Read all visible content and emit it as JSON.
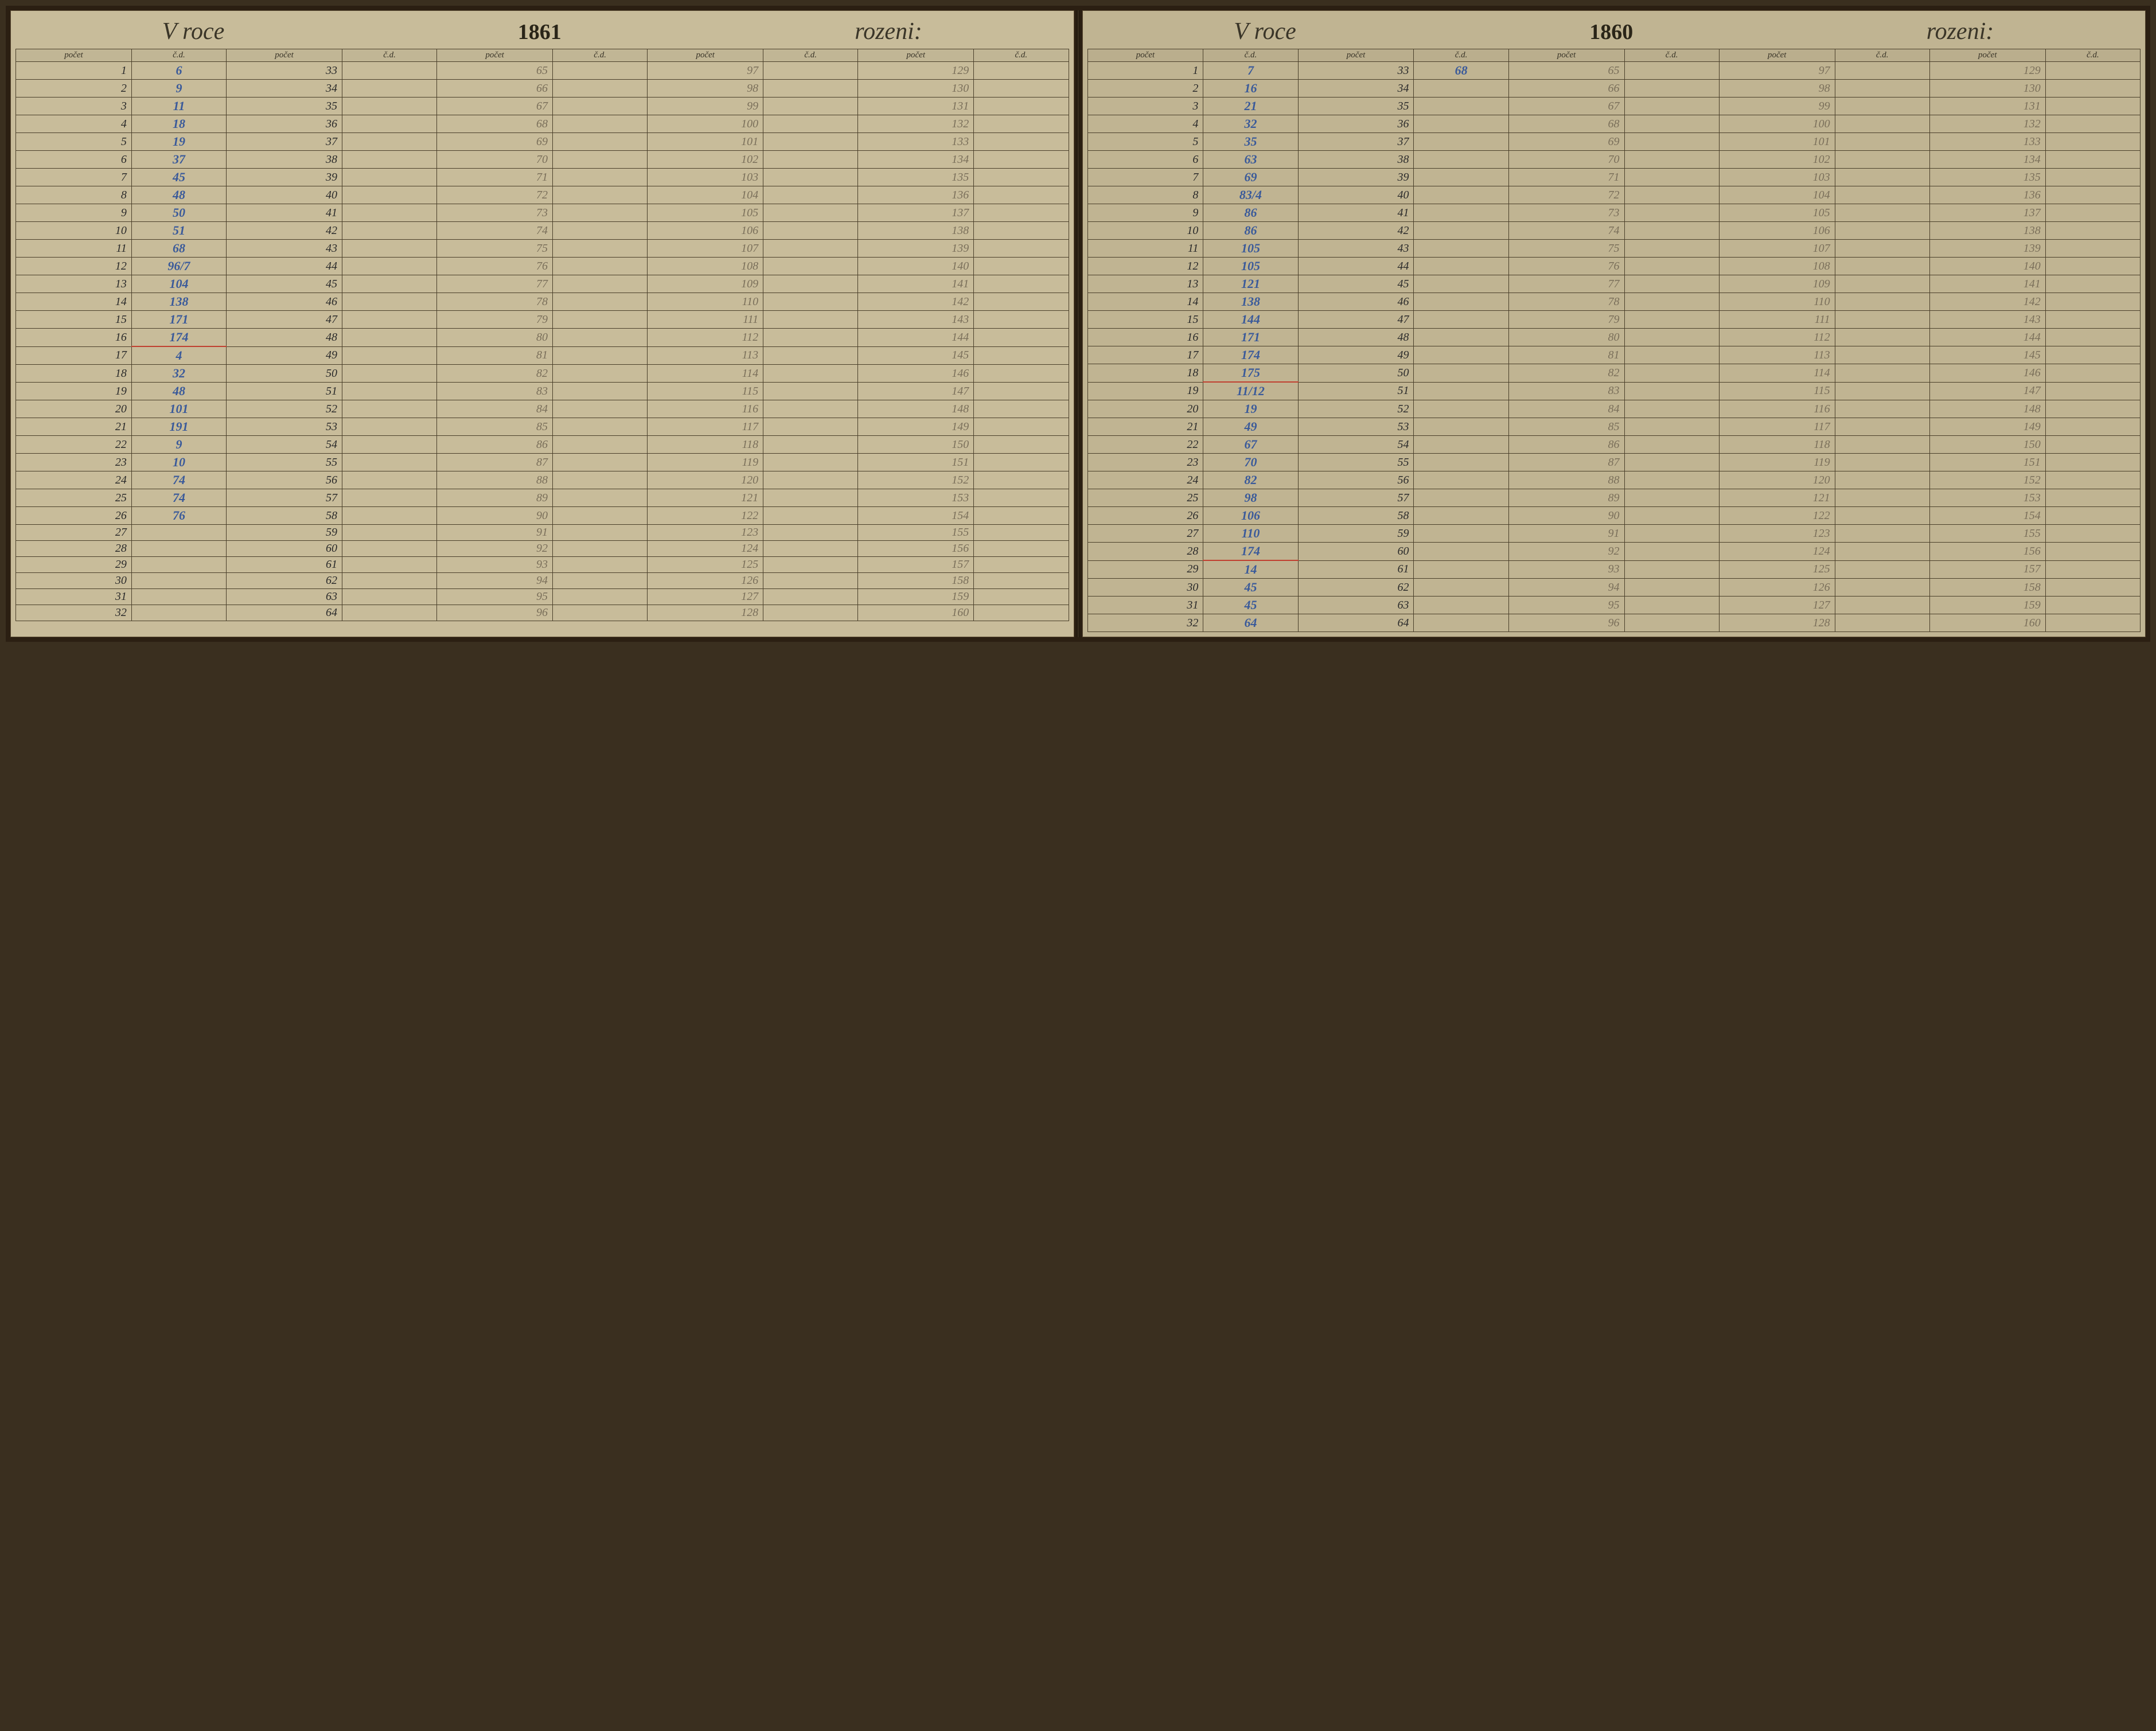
{
  "layout": {
    "book_bg": "#2b1f12",
    "page_left_bg": "#c8bc9a",
    "page_right_bg": "#c0b492",
    "border_color": "#4a3f2a",
    "ink_dark": "#2a2a2a",
    "ink_blue": "#3a5a9a",
    "ink_faint": "#7a6f5a",
    "red_underline": "#c04030",
    "title_fontsize": 42,
    "year_fontsize": 38,
    "cell_fontsize": 20,
    "header_fontsize": 15,
    "rows": 32,
    "col_pairs": 5
  },
  "left": {
    "title_prefix": "V roce",
    "year": "1861",
    "title_suffix": "rozeni:",
    "headers": {
      "pocet": "počet",
      "cd": "č.d."
    },
    "col1_pocet": [
      "1",
      "2",
      "3",
      "4",
      "5",
      "6",
      "7",
      "8",
      "9",
      "10",
      "11",
      "12",
      "13",
      "14",
      "15",
      "16",
      "17",
      "18",
      "19",
      "20",
      "21",
      "22",
      "23",
      "24",
      "25",
      "26",
      "27",
      "28",
      "29",
      "30",
      "31",
      "32"
    ],
    "col1_cd": [
      "6",
      "9",
      "11",
      "18",
      "19",
      "37",
      "45",
      "48",
      "50",
      "51",
      "68",
      "96/7",
      "104",
      "138",
      "171",
      "174",
      "4",
      "32",
      "48",
      "101",
      "191",
      "9",
      "10",
      "74",
      "74",
      "76",
      "",
      "",
      "",
      "",
      "",
      ""
    ],
    "col1_red_rows": [
      16
    ],
    "col2_pocet": [
      "33",
      "34",
      "35",
      "36",
      "37",
      "38",
      "39",
      "40",
      "41",
      "42",
      "43",
      "44",
      "45",
      "46",
      "47",
      "48",
      "49",
      "50",
      "51",
      "52",
      "53",
      "54",
      "55",
      "56",
      "57",
      "58",
      "59",
      "60",
      "61",
      "62",
      "63",
      "64"
    ],
    "col2_cd": [
      "",
      "",
      "",
      "",
      "",
      "",
      "",
      "",
      "",
      "",
      "",
      "",
      "",
      "",
      "",
      "",
      "",
      "",
      "",
      "",
      "",
      "",
      "",
      "",
      "",
      "",
      "",
      "",
      "",
      "",
      "",
      ""
    ],
    "col3_pocet": [
      "65",
      "66",
      "67",
      "68",
      "69",
      "70",
      "71",
      "72",
      "73",
      "74",
      "75",
      "76",
      "77",
      "78",
      "79",
      "80",
      "81",
      "82",
      "83",
      "84",
      "85",
      "86",
      "87",
      "88",
      "89",
      "90",
      "91",
      "92",
      "93",
      "94",
      "95",
      "96"
    ],
    "col3_cd": [
      "",
      "",
      "",
      "",
      "",
      "",
      "",
      "",
      "",
      "",
      "",
      "",
      "",
      "",
      "",
      "",
      "",
      "",
      "",
      "",
      "",
      "",
      "",
      "",
      "",
      "",
      "",
      "",
      "",
      "",
      "",
      ""
    ],
    "col4_pocet": [
      "97",
      "98",
      "99",
      "100",
      "101",
      "102",
      "103",
      "104",
      "105",
      "106",
      "107",
      "108",
      "109",
      "110",
      "111",
      "112",
      "113",
      "114",
      "115",
      "116",
      "117",
      "118",
      "119",
      "120",
      "121",
      "122",
      "123",
      "124",
      "125",
      "126",
      "127",
      "128"
    ],
    "col4_cd": [
      "",
      "",
      "",
      "",
      "",
      "",
      "",
      "",
      "",
      "",
      "",
      "",
      "",
      "",
      "",
      "",
      "",
      "",
      "",
      "",
      "",
      "",
      "",
      "",
      "",
      "",
      "",
      "",
      "",
      "",
      "",
      ""
    ],
    "col5_pocet": [
      "129",
      "130",
      "131",
      "132",
      "133",
      "134",
      "135",
      "136",
      "137",
      "138",
      "139",
      "140",
      "141",
      "142",
      "143",
      "144",
      "145",
      "146",
      "147",
      "148",
      "149",
      "150",
      "151",
      "152",
      "153",
      "154",
      "155",
      "156",
      "157",
      "158",
      "159",
      "160"
    ],
    "col5_cd": [
      "",
      "",
      "",
      "",
      "",
      "",
      "",
      "",
      "",
      "",
      "",
      "",
      "",
      "",
      "",
      "",
      "",
      "",
      "",
      "",
      "",
      "",
      "",
      "",
      "",
      "",
      "",
      "",
      "",
      "",
      "",
      ""
    ]
  },
  "right": {
    "title_prefix": "V roce",
    "year": "1860",
    "title_suffix": "rozeni:",
    "headers": {
      "pocet": "počet",
      "cd": "č.d."
    },
    "col1_pocet": [
      "1",
      "2",
      "3",
      "4",
      "5",
      "6",
      "7",
      "8",
      "9",
      "10",
      "11",
      "12",
      "13",
      "14",
      "15",
      "16",
      "17",
      "18",
      "19",
      "20",
      "21",
      "22",
      "23",
      "24",
      "25",
      "26",
      "27",
      "28",
      "29",
      "30",
      "31",
      "32"
    ],
    "col1_cd": [
      "7",
      "16",
      "21",
      "32",
      "35",
      "63",
      "69",
      "83/4",
      "86",
      "86",
      "105",
      "105",
      "121",
      "138",
      "144",
      "171",
      "174",
      "175",
      "11/12",
      "19",
      "49",
      "67",
      "70",
      "82",
      "98",
      "106",
      "110",
      "174",
      "14",
      "45",
      "45",
      "64"
    ],
    "col1_red_rows": [
      18,
      28
    ],
    "col2_pocet": [
      "33",
      "34",
      "35",
      "36",
      "37",
      "38",
      "39",
      "40",
      "41",
      "42",
      "43",
      "44",
      "45",
      "46",
      "47",
      "48",
      "49",
      "50",
      "51",
      "52",
      "53",
      "54",
      "55",
      "56",
      "57",
      "58",
      "59",
      "60",
      "61",
      "62",
      "63",
      "64"
    ],
    "col2_cd": [
      "68",
      "",
      "",
      "",
      "",
      "",
      "",
      "",
      "",
      "",
      "",
      "",
      "",
      "",
      "",
      "",
      "",
      "",
      "",
      "",
      "",
      "",
      "",
      "",
      "",
      "",
      "",
      "",
      "",
      "",
      "",
      ""
    ],
    "col3_pocet": [
      "65",
      "66",
      "67",
      "68",
      "69",
      "70",
      "71",
      "72",
      "73",
      "74",
      "75",
      "76",
      "77",
      "78",
      "79",
      "80",
      "81",
      "82",
      "83",
      "84",
      "85",
      "86",
      "87",
      "88",
      "89",
      "90",
      "91",
      "92",
      "93",
      "94",
      "95",
      "96"
    ],
    "col3_cd": [
      "",
      "",
      "",
      "",
      "",
      "",
      "",
      "",
      "",
      "",
      "",
      "",
      "",
      "",
      "",
      "",
      "",
      "",
      "",
      "",
      "",
      "",
      "",
      "",
      "",
      "",
      "",
      "",
      "",
      "",
      "",
      ""
    ],
    "col4_pocet": [
      "97",
      "98",
      "99",
      "100",
      "101",
      "102",
      "103",
      "104",
      "105",
      "106",
      "107",
      "108",
      "109",
      "110",
      "111",
      "112",
      "113",
      "114",
      "115",
      "116",
      "117",
      "118",
      "119",
      "120",
      "121",
      "122",
      "123",
      "124",
      "125",
      "126",
      "127",
      "128"
    ],
    "col4_cd": [
      "",
      "",
      "",
      "",
      "",
      "",
      "",
      "",
      "",
      "",
      "",
      "",
      "",
      "",
      "",
      "",
      "",
      "",
      "",
      "",
      "",
      "",
      "",
      "",
      "",
      "",
      "",
      "",
      "",
      "",
      "",
      ""
    ],
    "col5_pocet": [
      "129",
      "130",
      "131",
      "132",
      "133",
      "134",
      "135",
      "136",
      "137",
      "138",
      "139",
      "140",
      "141",
      "142",
      "143",
      "144",
      "145",
      "146",
      "147",
      "148",
      "149",
      "150",
      "151",
      "152",
      "153",
      "154",
      "155",
      "156",
      "157",
      "158",
      "159",
      "160"
    ],
    "col5_cd": [
      "",
      "",
      "",
      "",
      "",
      "",
      "",
      "",
      "",
      "",
      "",
      "",
      "",
      "",
      "",
      "",
      "",
      "",
      "",
      "",
      "",
      "",
      "",
      "",
      "",
      "",
      "",
      "",
      "",
      "",
      "",
      ""
    ]
  }
}
